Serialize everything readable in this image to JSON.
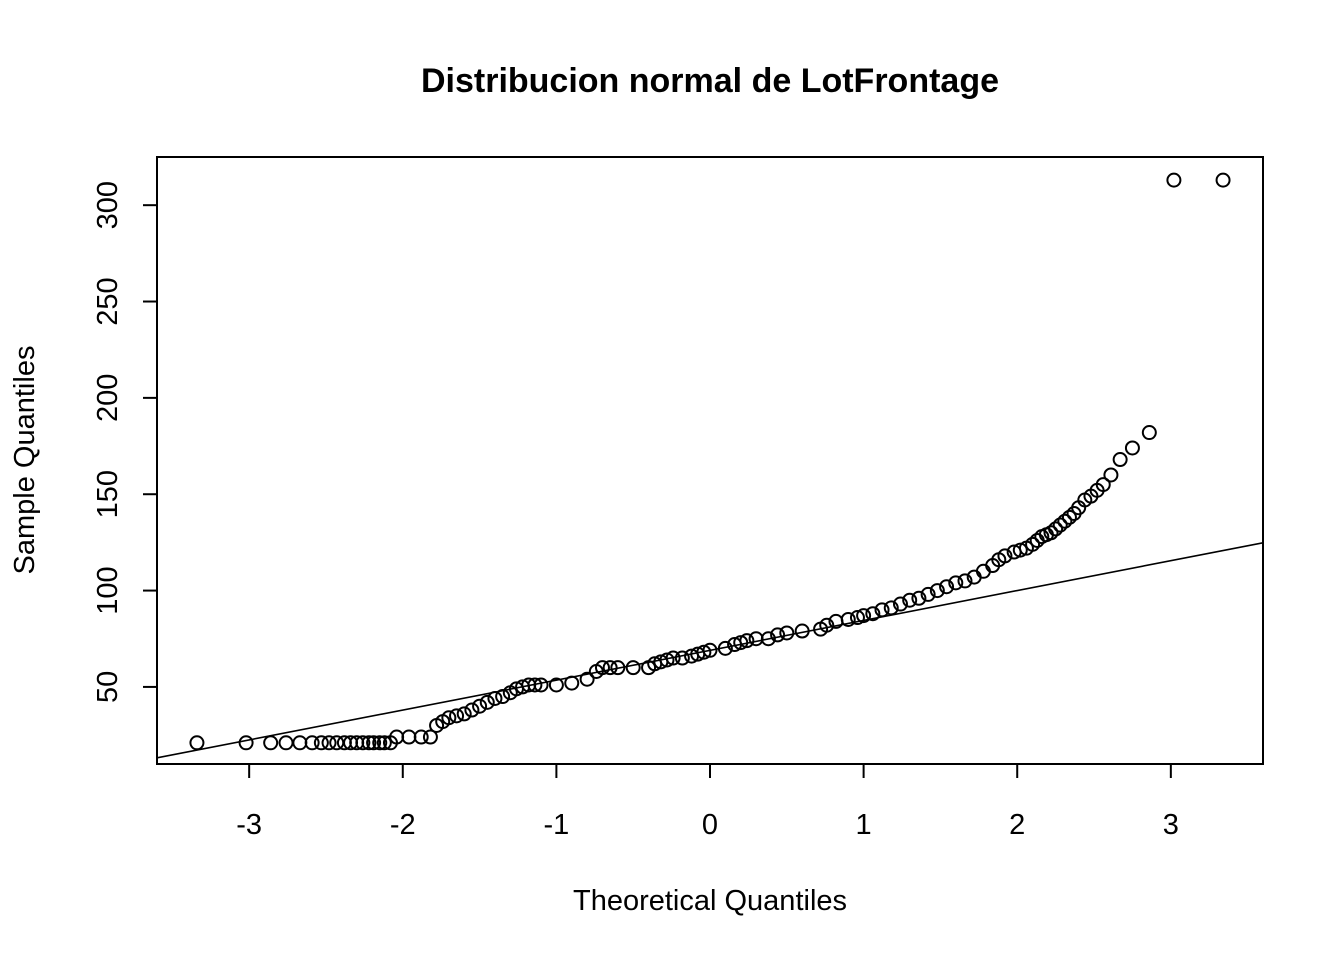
{
  "chart_data": {
    "type": "scatter",
    "title": "Distribucion normal de LotFrontage",
    "xlabel": "Theoretical Quantiles",
    "ylabel": "Sample Quantiles",
    "xlim": [
      -3.6,
      3.6
    ],
    "ylim": [
      10,
      325
    ],
    "x_ticks": [
      -3,
      -2,
      -1,
      0,
      1,
      2,
      3
    ],
    "y_ticks": [
      50,
      100,
      150,
      200,
      250,
      300
    ],
    "grid": false,
    "legend": "none",
    "reference_line": {
      "slope": 15.5,
      "intercept": 69
    },
    "x": [
      -3.34,
      -3.02,
      -2.86,
      -2.76,
      -2.67,
      -2.59,
      -2.53,
      -2.48,
      -2.43,
      -2.38,
      -2.34,
      -2.3,
      -2.26,
      -2.22,
      -2.19,
      -2.15,
      -2.12,
      -2.08,
      -2.04,
      -1.96,
      -1.88,
      -1.82,
      -1.78,
      -1.74,
      -1.7,
      -1.65,
      -1.6,
      -1.55,
      -1.5,
      -1.45,
      -1.4,
      -1.35,
      -1.3,
      -1.26,
      -1.22,
      -1.18,
      -1.14,
      -1.1,
      -1.0,
      -0.9,
      -0.8,
      -0.74,
      -0.7,
      -0.65,
      -0.6,
      -0.5,
      -0.4,
      -0.36,
      -0.32,
      -0.28,
      -0.24,
      -0.18,
      -0.12,
      -0.08,
      -0.04,
      0.0,
      0.1,
      0.16,
      0.2,
      0.24,
      0.3,
      0.38,
      0.44,
      0.5,
      0.6,
      0.72,
      0.76,
      0.82,
      0.9,
      0.96,
      1.0,
      1.06,
      1.12,
      1.18,
      1.24,
      1.3,
      1.36,
      1.42,
      1.48,
      1.54,
      1.6,
      1.66,
      1.72,
      1.78,
      1.84,
      1.88,
      1.92,
      1.98,
      2.02,
      2.06,
      2.1,
      2.13,
      2.16,
      2.19,
      2.22,
      2.25,
      2.28,
      2.31,
      2.34,
      2.37,
      2.4,
      2.44,
      2.48,
      2.52,
      2.56,
      2.61,
      2.67,
      2.75,
      2.86,
      3.02,
      3.34
    ],
    "y": [
      21,
      21,
      21,
      21,
      21,
      21,
      21,
      21,
      21,
      21,
      21,
      21,
      21,
      21,
      21,
      21,
      21,
      21,
      24,
      24,
      24,
      24,
      30,
      32,
      34,
      35,
      36,
      38,
      40,
      42,
      44,
      45,
      47,
      49,
      50,
      51,
      51,
      51,
      51,
      52,
      54,
      58,
      60,
      60,
      60,
      60,
      60,
      62,
      63,
      64,
      65,
      65,
      66,
      67,
      68,
      69,
      70,
      72,
      73,
      74,
      75,
      75,
      77,
      78,
      79,
      80,
      82,
      84,
      85,
      86,
      87,
      88,
      90,
      91,
      93,
      95,
      96,
      98,
      100,
      102,
      104,
      105,
      107,
      110,
      113,
      116,
      118,
      120,
      121,
      122,
      124,
      126,
      128,
      129,
      130,
      132,
      134,
      136,
      138,
      140,
      143,
      147,
      149,
      152,
      155,
      160,
      168,
      174,
      182,
      313,
      313
    ]
  }
}
